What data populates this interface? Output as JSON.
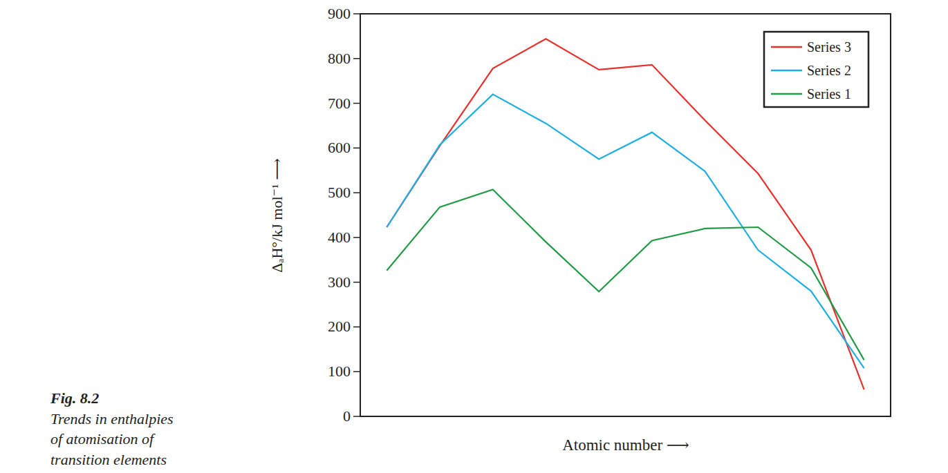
{
  "chart_data": {
    "type": "line",
    "x_label": "Atomic number ⟶",
    "y_label": "ΔₐH°/kJ mol⁻¹ ⟶",
    "annotations": [
      "Fig. 8.2",
      "Trends in enthalpies",
      "of atomisation of",
      "transition elements"
    ],
    "categories": [
      null,
      null,
      null,
      null,
      null,
      null,
      null,
      null,
      null,
      null
    ],
    "series": [
      {
        "name": "Series 3",
        "color": "#e8302c",
        "values": [
          423,
          605,
          778,
          844,
          775,
          786,
          662,
          543,
          372,
          60
        ]
      },
      {
        "name": "Series 2",
        "color": "#1eaee6",
        "values": [
          423,
          607,
          720,
          655,
          575,
          635,
          548,
          372,
          280,
          108
        ]
      },
      {
        "name": "Series 1",
        "color": "#1f9a45",
        "values": [
          326,
          468,
          507,
          390,
          279,
          393,
          420,
          423,
          332,
          126
        ]
      }
    ],
    "ylim": [
      0,
      900
    ],
    "yticks": [
      0,
      100,
      200,
      300,
      400,
      500,
      600,
      700,
      800,
      900
    ],
    "grid": false,
    "legend": "upper right",
    "tick_labels": "y"
  }
}
